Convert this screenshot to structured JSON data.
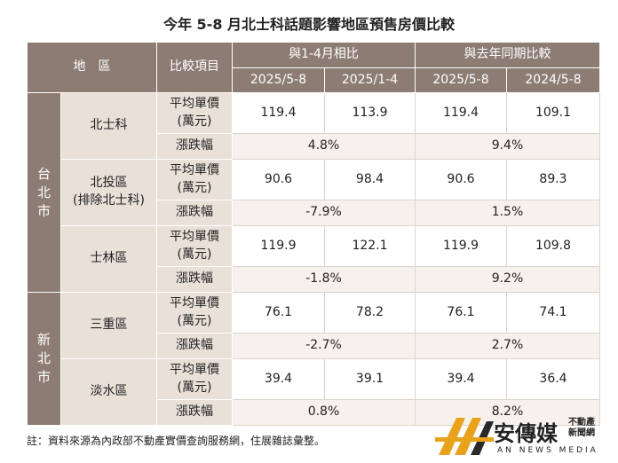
{
  "title": "今年 5-8 月北士科話題影響地區預售房價比較",
  "header": {
    "region": "地　區",
    "item": "比較項目",
    "group1": "與1-4月相比",
    "group2": "與去年同期比較",
    "periods": [
      "2025/5-8",
      "2025/1-4",
      "2025/5-8",
      "2024/5-8"
    ]
  },
  "groups": [
    {
      "name": "台\n北\n市",
      "rows": [
        {
          "area": "北士科",
          "price_label": "平均單價\n(萬元)",
          "prices": [
            "119.4",
            "113.9",
            "119.4",
            "109.1"
          ],
          "change_label": "漲跌幅",
          "changes": [
            "4.8%",
            "9.4%"
          ]
        },
        {
          "area": "北投區\n(排除北士科)",
          "price_label": "平均單價\n(萬元)",
          "prices": [
            "90.6",
            "98.4",
            "90.6",
            "89.3"
          ],
          "change_label": "漲跌幅",
          "changes": [
            "-7.9%",
            "1.5%"
          ]
        },
        {
          "area": "士林區",
          "price_label": "平均單價\n(萬元)",
          "prices": [
            "119.9",
            "122.1",
            "119.9",
            "109.8"
          ],
          "change_label": "漲跌幅",
          "changes": [
            "-1.8%",
            "9.2%"
          ]
        }
      ]
    },
    {
      "name": "新\n北\n市",
      "rows": [
        {
          "area": "三重區",
          "price_label": "平均單價\n(萬元)",
          "prices": [
            "76.1",
            "78.2",
            "76.1",
            "74.1"
          ],
          "change_label": "漲跌幅",
          "changes": [
            "-2.7%",
            "2.7%"
          ]
        },
        {
          "area": "淡水區",
          "price_label": "平均單價\n(萬元)",
          "prices": [
            "39.4",
            "39.1",
            "39.4",
            "36.4"
          ],
          "change_label": "漲跌幅",
          "changes": [
            "0.8%",
            "8.2%"
          ]
        }
      ]
    }
  ],
  "note": "註：資料來源為內政部不動產實價查詢服務網，住展雜誌彙整。",
  "logo": {
    "name": "安傳媒",
    "tag": "不動產\n新聞網",
    "english": "AN NEWS MEDIA"
  }
}
